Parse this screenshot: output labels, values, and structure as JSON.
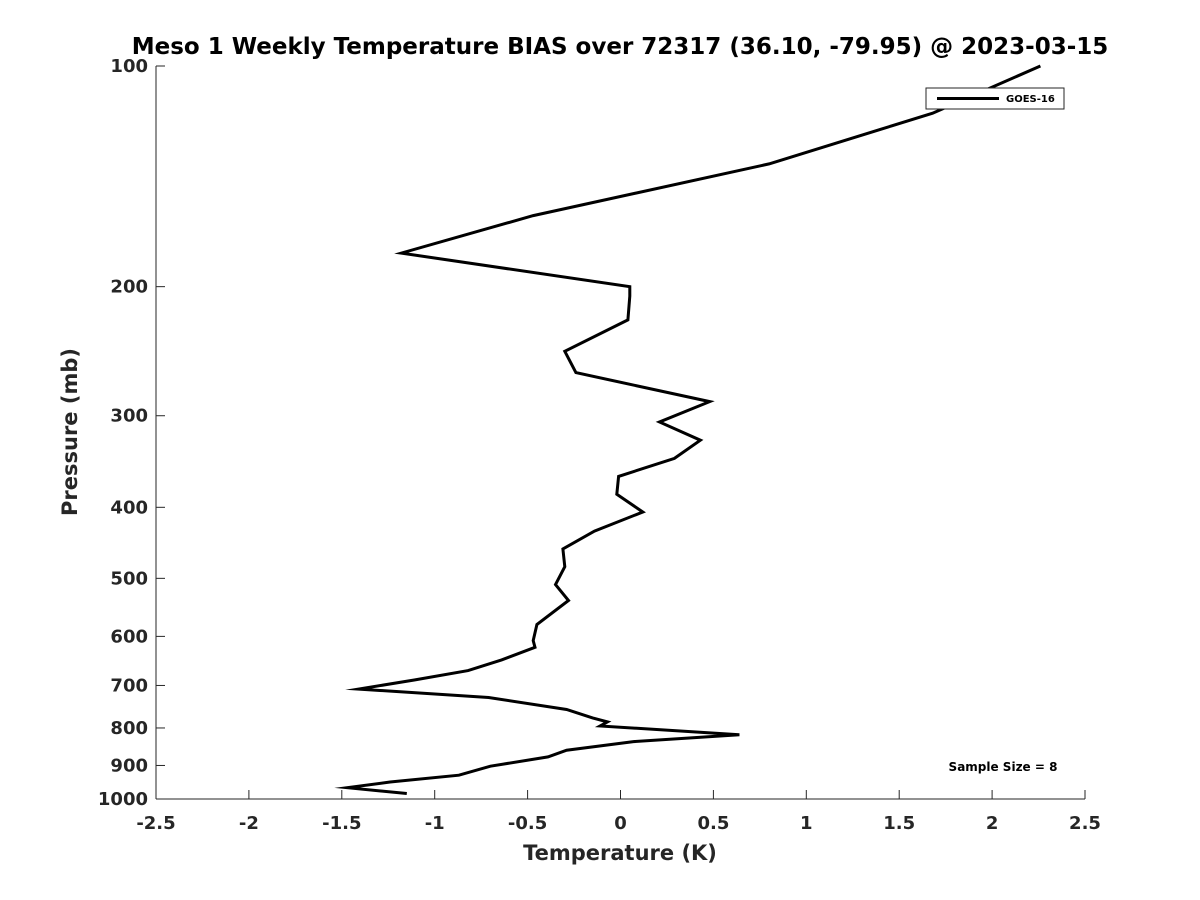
{
  "chart_data": {
    "type": "line",
    "title": "Meso 1 Weekly Temperature BIAS over 72317 (36.10, -79.95) @ 2023-03-15",
    "xlabel": "Temperature (K)",
    "ylabel": "Pressure (mb)",
    "xlim": [
      -2.5,
      2.5
    ],
    "ylim": [
      100,
      1000
    ],
    "y_scale": "log",
    "y_inverted": true,
    "x_ticks": [
      -2.5,
      -2,
      -1.5,
      -1,
      -0.5,
      0,
      0.5,
      1,
      1.5,
      2,
      2.5
    ],
    "x_tick_labels": [
      "-2.5",
      "-2",
      "-1.5",
      "-1",
      "-0.5",
      "0",
      "0.5",
      "1",
      "1.5",
      "2",
      "2.5"
    ],
    "y_ticks": [
      100,
      200,
      300,
      400,
      500,
      600,
      700,
      800,
      900,
      1000
    ],
    "y_tick_labels": [
      "100",
      "200",
      "300",
      "400",
      "500",
      "600",
      "700",
      "800",
      "900",
      "1000"
    ],
    "grid": false,
    "legend_position": "top-right",
    "annotation": "Sample Size = 8",
    "series": [
      {
        "name": "GOES-16",
        "color": "#000000",
        "points": [
          {
            "x": 2.26,
            "p": 100
          },
          {
            "x": 1.68,
            "p": 116
          },
          {
            "x": 0.8,
            "p": 136
          },
          {
            "x": -0.47,
            "p": 160
          },
          {
            "x": -1.18,
            "p": 180
          },
          {
            "x": 0.05,
            "p": 200
          },
          {
            "x": 0.05,
            "p": 206
          },
          {
            "x": 0.04,
            "p": 222
          },
          {
            "x": -0.3,
            "p": 245
          },
          {
            "x": -0.24,
            "p": 262
          },
          {
            "x": 0.48,
            "p": 287
          },
          {
            "x": 0.21,
            "p": 306
          },
          {
            "x": 0.43,
            "p": 324
          },
          {
            "x": 0.29,
            "p": 343
          },
          {
            "x": -0.01,
            "p": 363
          },
          {
            "x": -0.02,
            "p": 384
          },
          {
            "x": 0.12,
            "p": 406
          },
          {
            "x": -0.14,
            "p": 431
          },
          {
            "x": -0.31,
            "p": 456
          },
          {
            "x": -0.3,
            "p": 482
          },
          {
            "x": -0.35,
            "p": 510
          },
          {
            "x": -0.28,
            "p": 536
          },
          {
            "x": -0.45,
            "p": 578
          },
          {
            "x": -0.47,
            "p": 608
          },
          {
            "x": -0.46,
            "p": 621
          },
          {
            "x": -0.64,
            "p": 646
          },
          {
            "x": -0.82,
            "p": 668
          },
          {
            "x": -1.11,
            "p": 688
          },
          {
            "x": -1.41,
            "p": 708
          },
          {
            "x": -0.71,
            "p": 727
          },
          {
            "x": -0.29,
            "p": 755
          },
          {
            "x": -0.15,
            "p": 775
          },
          {
            "x": -0.07,
            "p": 785
          },
          {
            "x": -0.11,
            "p": 795
          },
          {
            "x": 0.64,
            "p": 817
          },
          {
            "x": 0.07,
            "p": 835
          },
          {
            "x": -0.29,
            "p": 858
          },
          {
            "x": -0.39,
            "p": 876
          },
          {
            "x": -0.7,
            "p": 902
          },
          {
            "x": -0.87,
            "p": 928
          },
          {
            "x": -1.24,
            "p": 948
          },
          {
            "x": -1.47,
            "p": 965
          },
          {
            "x": -1.15,
            "p": 983
          }
        ]
      }
    ]
  }
}
